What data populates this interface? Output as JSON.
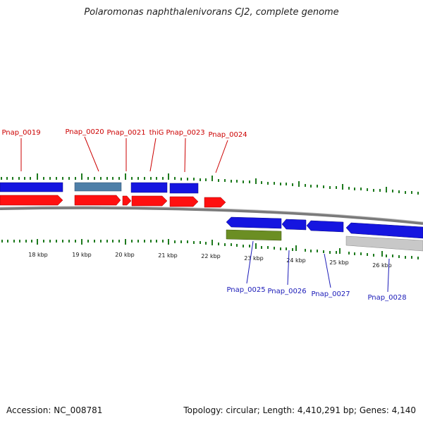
{
  "title": "Polaromonas naphthalenivorans CJ2, complete genome",
  "footer": {
    "accession": "Accession: NC_008781",
    "summary": "Topology: circular; Length: 4,410,291 bp; Genes: 4,140"
  },
  "colors": {
    "forward_label": "#cc0000",
    "reverse_label": "#1a1ab8",
    "cds_blue": "#1515e0",
    "gene_red": "#ff1010",
    "pseudo_steelblue": "#4f7fa8",
    "rna_olive": "#6b8e23",
    "grey_feature": "#c8c8c8",
    "backbone": "#777777",
    "tick_green": "#1e7a1e"
  },
  "scale": {
    "ticks": [
      {
        "label": "18 kbp"
      },
      {
        "label": "19 kbp"
      },
      {
        "label": "20 kbp"
      },
      {
        "label": "21 kbp"
      },
      {
        "label": "22 kbp"
      },
      {
        "label": "23 kbp"
      },
      {
        "label": "24 kbp"
      },
      {
        "label": "25 kbp"
      },
      {
        "label": "26 kbp"
      }
    ]
  },
  "gene_labels": {
    "top": [
      {
        "name": "Pnap_0019"
      },
      {
        "name": "Pnap_0020"
      },
      {
        "name": "Pnap_0021"
      },
      {
        "name": "thiG"
      },
      {
        "name": "Pnap_0023"
      },
      {
        "name": "Pnap_0024"
      }
    ],
    "bottom": [
      {
        "name": "Pnap_0025"
      },
      {
        "name": "Pnap_0026"
      },
      {
        "name": "Pnap_0027"
      },
      {
        "name": "Pnap_0028"
      }
    ]
  }
}
